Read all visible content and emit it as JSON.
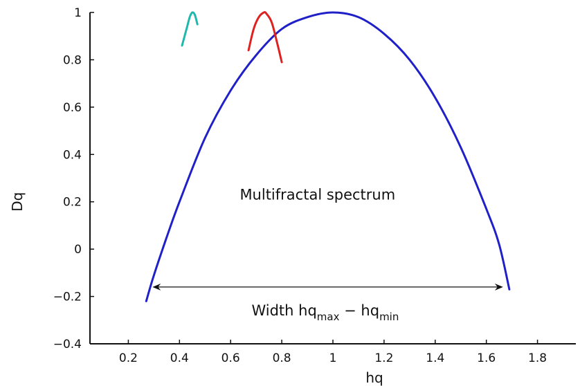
{
  "chart_data": {
    "type": "line",
    "xlabel": "hq",
    "ylabel": "Dq",
    "xlim": [
      0.05,
      1.95
    ],
    "ylim": [
      -0.4,
      1.0
    ],
    "xticks": [
      0.2,
      0.4,
      0.6,
      0.8,
      1,
      1.2,
      1.4,
      1.6,
      1.8
    ],
    "yticks": [
      -0.4,
      -0.2,
      0,
      0.2,
      0.4,
      0.6,
      0.8,
      1
    ],
    "xtick_labels": [
      "0.2",
      "0.4",
      "0.6",
      "0.8",
      "1",
      "1.2",
      "1.4",
      "1.6",
      "1.8"
    ],
    "ytick_labels": [
      "−0.4",
      "−0.2",
      "0",
      "0.2",
      "0.4",
      "0.6",
      "0.8",
      "1"
    ],
    "grid": false,
    "series": [
      {
        "color": "#2020c8",
        "x": [
          0.27,
          0.3,
          0.35,
          0.4,
          0.5,
          0.6,
          0.7,
          0.8,
          0.9,
          1.0,
          1.1,
          1.2,
          1.3,
          1.4,
          1.5,
          1.6,
          1.65,
          1.69
        ],
        "y": [
          -0.22,
          -0.11,
          0.05,
          0.2,
          0.47,
          0.67,
          0.82,
          0.93,
          0.98,
          1.0,
          0.98,
          0.91,
          0.8,
          0.64,
          0.43,
          0.17,
          0.02,
          -0.17
        ]
      },
      {
        "color": "#dd2222",
        "x": [
          0.67,
          0.69,
          0.71,
          0.73,
          0.74,
          0.76,
          0.78,
          0.8
        ],
        "y": [
          0.84,
          0.93,
          0.98,
          1.0,
          0.995,
          0.96,
          0.88,
          0.79
        ]
      },
      {
        "color": "#1fb8aa",
        "x": [
          0.41,
          0.42,
          0.43,
          0.44,
          0.45,
          0.46,
          0.47
        ],
        "y": [
          0.86,
          0.9,
          0.94,
          0.98,
          1.0,
          0.99,
          0.95
        ]
      }
    ],
    "annotations": {
      "spectrum_label": "Multifractal spectrum",
      "width_prefix": "Width hq",
      "width_sub_max": "max",
      "width_minus": " − hq",
      "width_sub_min": "min",
      "arrow": {
        "x_start": 0.3,
        "x_end": 1.66,
        "y": -0.16
      },
      "spectrum_label_pos": {
        "x": 0.94,
        "y": 0.21
      },
      "width_label_pos": {
        "x": 0.97,
        "y": -0.28
      }
    }
  }
}
